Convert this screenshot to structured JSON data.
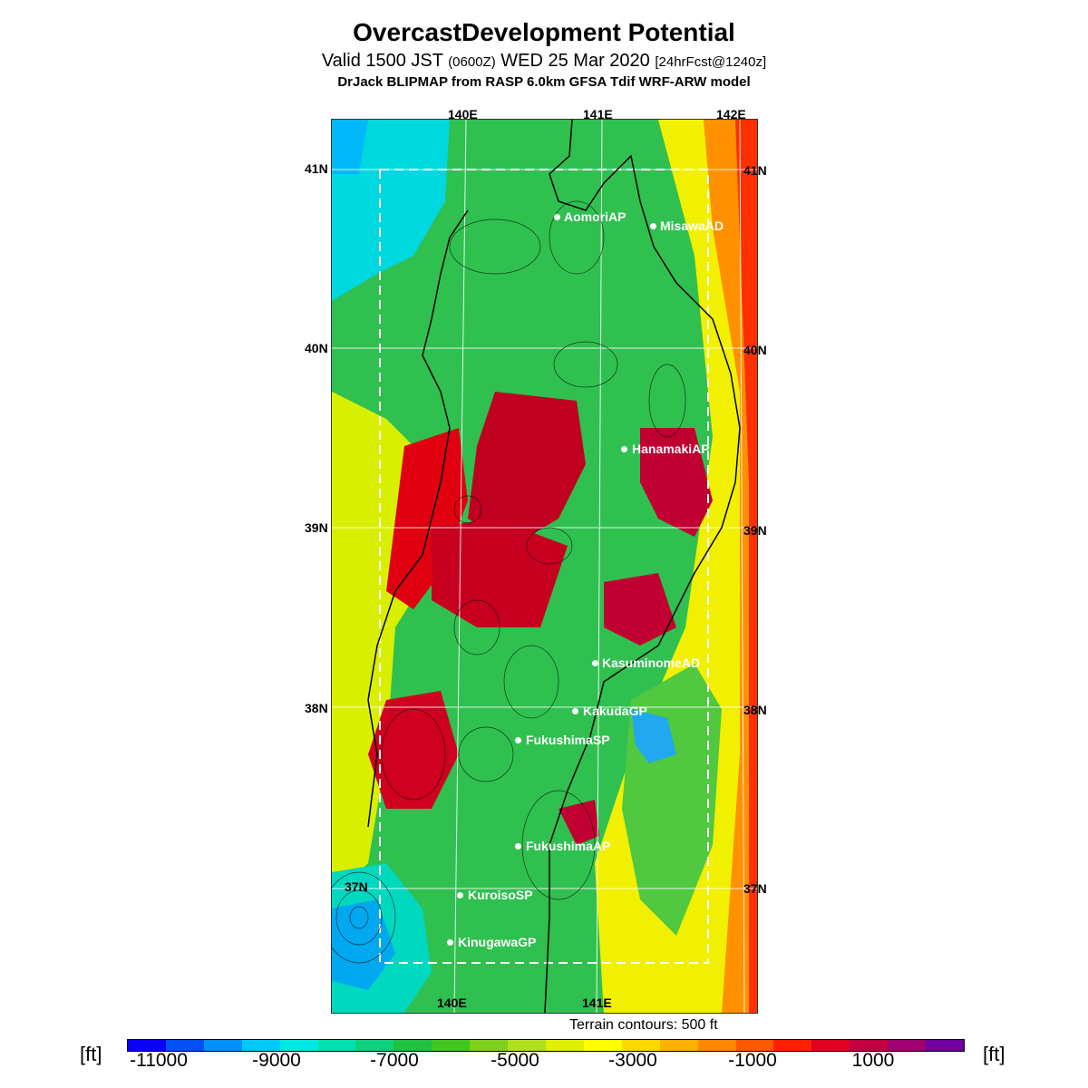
{
  "header": {
    "title": "OvercastDevelopment Potential",
    "valid_prefix": "Valid 1500 JST",
    "valid_zulu": "(0600Z)",
    "valid_date": "WED 25 Mar 2020",
    "forecast": "[24hrFcst@1240z]",
    "model": "DrJack BLIPMAP from RASP 6.0km GFSA Tdif WRF-ARW model"
  },
  "map": {
    "lon_labels": [
      "140E",
      "141E",
      "142E"
    ],
    "lat_labels": [
      "41N",
      "40N",
      "39N",
      "38N",
      "37N"
    ],
    "cities": [
      {
        "name": "AomoriAP"
      },
      {
        "name": "MisawaAD"
      },
      {
        "name": "HanamakiAP"
      },
      {
        "name": "KasuminomeAD"
      },
      {
        "name": "KakudaGP"
      },
      {
        "name": "FukushimaSP"
      },
      {
        "name": "FukushimaAP"
      },
      {
        "name": "KuroisoSP"
      },
      {
        "name": "KinugawaGP"
      }
    ],
    "contour_note": "Terrain contours: 500 ft"
  },
  "colorbar": {
    "unit_left": "[ft]",
    "unit_right": "[ft]",
    "labels": [
      "-11000",
      "-9000",
      "-7000",
      "-5000",
      "-3000",
      "-1000",
      "1000"
    ],
    "colors": [
      "#0a00f4",
      "#0050f4",
      "#0090f8",
      "#00c8f8",
      "#00e8e0",
      "#00e0b0",
      "#10d080",
      "#20c040",
      "#40c820",
      "#80d020",
      "#b0e020",
      "#e0f000",
      "#ffff00",
      "#ffd800",
      "#ffb000",
      "#ff8800",
      "#ff5800",
      "#ff2000",
      "#e00020",
      "#c00040",
      "#a00070",
      "#7000a0"
    ]
  }
}
